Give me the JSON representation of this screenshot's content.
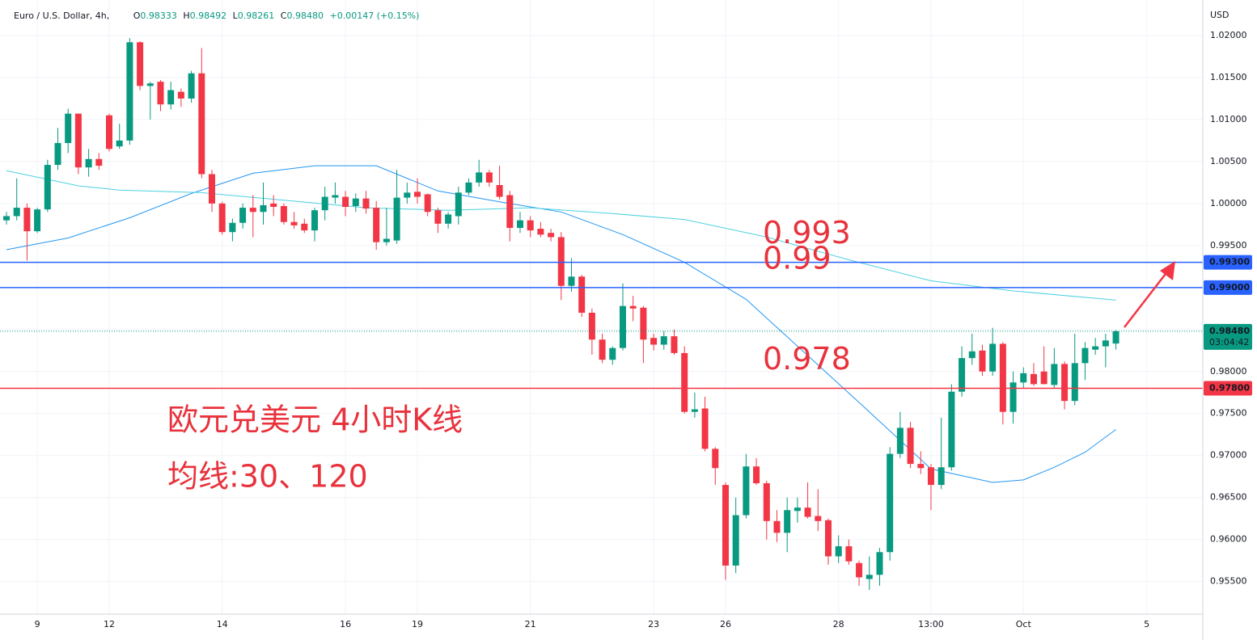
{
  "chart_data": {
    "type": "candlestick",
    "header": {
      "symbol": "Euro / U.S. Dollar, 4h,",
      "ohlc": [
        {
          "key": "O",
          "value": "0.98333"
        },
        {
          "key": "H",
          "value": "0.98492"
        },
        {
          "key": "L",
          "value": "0.98261"
        },
        {
          "key": "C",
          "value": "0.98480"
        }
      ],
      "change": "+0.00147 (+0.15%)"
    },
    "currency": "USD",
    "annotations": [
      "欧元兑美元 4小时K线",
      "均线:30、120"
    ],
    "up_color": "#089981",
    "down_color": "#f23645",
    "open": [
      0.998,
      0.9985,
      0.9995,
      0.9967,
      0.9993,
      1.0046,
      1.0072,
      1.0107,
      1.0043,
      1.0053,
      1.0105,
      1.0068,
      1.0075,
      1.0192,
      1.014,
      1.0145,
      1.0118,
      1.0133,
      1.0125,
      1.0155,
      1.0035,
      1.0,
      0.9966,
      0.9977,
      0.9995,
      0.999,
      1.0,
      0.9997,
      0.9978,
      0.9976,
      0.9968,
      0.9992,
      1.0007,
      1.0008,
      0.9997,
      1.0006,
      0.9995,
      0.9954,
      0.9956,
      1.0007,
      1.0014,
      1.0011,
      0.9992,
      0.9976,
      0.9985,
      1.0013,
      1.0025,
      1.0037,
      1.0022,
      1.001,
      0.9971,
      0.998,
      0.997,
      0.9965,
      0.996,
      0.9902,
      0.9913,
      0.987,
      0.9838,
      0.9814,
      0.9828,
      0.9878,
      0.9876,
      0.984,
      0.9832,
      0.9842,
      0.9822,
      0.9752,
      0.9756,
      0.9708,
      0.9665,
      0.9569,
      0.9629,
      0.9687,
      0.9667,
      0.9622,
      0.9608,
      0.9634,
      0.9638,
      0.9628,
      0.9623,
      0.958,
      0.9592,
      0.9572,
      0.9553,
      0.9558,
      0.9585,
      0.9702,
      0.9733,
      0.969,
      0.9686,
      0.9665,
      0.9686,
      0.9776,
      0.9816,
      0.9825,
      0.98,
      0.9833,
      0.9752,
      0.9787,
      0.9797,
      0.98,
      0.9784,
      0.9809,
      0.9765,
      0.981,
      0.9826,
      0.983,
      0.98333
    ],
    "high": [
      0.999,
      1.003,
      1.0,
      0.9995,
      1.0052,
      1.009,
      1.0113,
      1.0107,
      1.0065,
      1.006,
      1.0107,
      1.0095,
      1.0197,
      1.0193,
      1.0145,
      1.0147,
      1.0145,
      1.0137,
      1.0158,
      1.0185,
      1.004,
      1.0002,
      0.9982,
      1.0,
      1.001,
      1.0025,
      1.001,
      1.0,
      0.999,
      0.9982,
      0.9995,
      1.002,
      1.0025,
      1.0015,
      1.0012,
      1.0015,
      1.0003,
      0.9995,
      1.004,
      1.0025,
      1.003,
      1.0012,
      0.9995,
      0.999,
      1.002,
      1.003,
      1.0052,
      1.004,
      1.0045,
      1.0015,
      0.999,
      0.9985,
      0.9978,
      0.997,
      0.9966,
      0.9935,
      0.9915,
      0.9875,
      0.9845,
      0.983,
      0.9905,
      0.989,
      0.9878,
      0.9845,
      0.9848,
      0.985,
      0.983,
      0.9775,
      0.977,
      0.971,
      0.9668,
      0.965,
      0.9702,
      0.9697,
      0.967,
      0.9635,
      0.965,
      0.965,
      0.9668,
      0.966,
      0.9625,
      0.9605,
      0.96,
      0.9575,
      0.958,
      0.959,
      0.971,
      0.9752,
      0.974,
      0.9705,
      0.969,
      0.9745,
      0.9785,
      0.983,
      0.9845,
      0.9832,
      0.9852,
      0.9835,
      0.98,
      0.9805,
      0.981,
      0.983,
      0.9828,
      0.9812,
      0.9845,
      0.9835,
      0.984,
      0.9845,
      0.98492
    ],
    "low": [
      0.9975,
      0.998,
      0.9932,
      0.9965,
      0.999,
      1.004,
      1.006,
      1.0035,
      1.0032,
      1.004,
      1.0062,
      1.0065,
      1.007,
      1.0135,
      1.01,
      1.011,
      1.0112,
      1.0115,
      1.012,
      1.003,
      0.999,
      0.9963,
      0.9955,
      0.997,
      0.996,
      0.9975,
      0.9985,
      0.9975,
      0.997,
      0.9965,
      0.9955,
      0.998,
      1.0,
      0.9985,
      0.999,
      0.9988,
      0.9945,
      0.995,
      0.9952,
      1.0,
      1.0,
      0.9985,
      0.9965,
      0.997,
      0.9975,
      1.001,
      1.002,
      1.002,
      1.0005,
      0.9955,
      0.9965,
      0.996,
      0.996,
      0.9955,
      0.9885,
      0.9895,
      0.9865,
      0.982,
      0.981,
      0.9808,
      0.9825,
      0.986,
      0.981,
      0.9825,
      0.9826,
      0.982,
      0.975,
      0.9745,
      0.9705,
      0.9665,
      0.9552,
      0.956,
      0.9625,
      0.9665,
      0.96,
      0.9597,
      0.9585,
      0.962,
      0.9625,
      0.961,
      0.957,
      0.9572,
      0.957,
      0.9545,
      0.954,
      0.9545,
      0.9575,
      0.9697,
      0.9685,
      0.9678,
      0.9635,
      0.966,
      0.9682,
      0.977,
      0.9808,
      0.9795,
      0.9795,
      0.9737,
      0.9738,
      0.978,
      0.9783,
      0.9785,
      0.978,
      0.9755,
      0.976,
      0.979,
      0.982,
      0.9805,
      0.98261
    ],
    "close": [
      0.9985,
      0.9995,
      0.9967,
      0.9993,
      1.0046,
      1.0072,
      1.0107,
      1.0043,
      1.0053,
      1.0045,
      1.0065,
      1.0075,
      1.0192,
      1.014,
      1.0143,
      1.0118,
      1.0135,
      1.0125,
      1.0155,
      1.0035,
      1.0,
      0.9966,
      0.9977,
      0.9995,
      0.999,
      0.9998,
      0.9996,
      0.9978,
      0.9974,
      0.9968,
      0.9992,
      1.0008,
      1.001,
      0.9996,
      1.0006,
      0.9994,
      0.9954,
      0.9958,
      1.0007,
      1.0013,
      1.0008,
      0.999,
      0.9976,
      0.9987,
      1.0013,
      1.0025,
      1.0037,
      1.0025,
      1.0008,
      0.9971,
      0.998,
      0.9968,
      0.9963,
      0.996,
      0.9902,
      0.9913,
      0.987,
      0.9838,
      0.9814,
      0.9828,
      0.9878,
      0.9875,
      0.9838,
      0.9832,
      0.9842,
      0.9822,
      0.9752,
      0.9755,
      0.9708,
      0.9685,
      0.9569,
      0.9629,
      0.9687,
      0.9667,
      0.9622,
      0.9608,
      0.9635,
      0.9638,
      0.9627,
      0.9622,
      0.958,
      0.9592,
      0.9574,
      0.9555,
      0.9558,
      0.9585,
      0.9702,
      0.9733,
      0.969,
      0.9685,
      0.9665,
      0.9686,
      0.9776,
      0.9816,
      0.9824,
      0.98,
      0.9833,
      0.9752,
      0.9787,
      0.9798,
      0.9785,
      0.9785,
      0.9809,
      0.9765,
      0.981,
      0.9828,
      0.983,
      0.9837,
      0.9848
    ],
    "lines": [
      {
        "color": "#2196f3",
        "x": [
          0,
          6,
          12,
          18,
          24,
          30,
          36,
          42,
          48,
          54,
          60,
          66,
          72,
          78,
          84,
          90,
          96,
          99,
          102,
          105,
          108
        ],
        "values": [
          0.9945,
          0.9959,
          0.9983,
          1.0012,
          1.0036,
          1.0045,
          1.0045,
          1.0015,
          1.0002,
          0.999,
          0.9963,
          0.993,
          0.9886,
          0.9819,
          0.9752,
          0.9684,
          0.9668,
          0.9671,
          0.9686,
          0.9704,
          0.9731
        ]
      },
      {
        "color": "#4dd0e1",
        "x": [
          0,
          7,
          11,
          19,
          27,
          35,
          43,
          51,
          59,
          66,
          74,
          82,
          90,
          98,
          108
        ],
        "values": [
          1.0039,
          1.0021,
          1.0016,
          1.0013,
          1.0004,
          0.9995,
          0.9992,
          0.9995,
          0.9988,
          0.9981,
          0.996,
          0.9933,
          0.9908,
          0.9896,
          0.9885
        ]
      }
    ],
    "levels": [
      {
        "value": 0.993,
        "label": "0.99300",
        "color": "#2962ff"
      },
      {
        "value": 0.99,
        "label": "0.99000",
        "color": "#2962ff"
      },
      {
        "value": 0.978,
        "label": "0.97800",
        "color": "#f23645"
      }
    ],
    "last_price": {
      "value": 0.9848,
      "label": "0.98480",
      "countdown": "03:04:42",
      "color": "#089981"
    },
    "ylim": [
      0.95131,
      1.02346
    ],
    "yticks": [
      {
        "value": 1.02,
        "label": "1.02000"
      },
      {
        "value": 1.015,
        "label": "1.01500"
      },
      {
        "value": 1.01,
        "label": "1.01000"
      },
      {
        "value": 1.005,
        "label": "1.00500"
      },
      {
        "value": 1.0,
        "label": "1.00000"
      },
      {
        "value": 0.995,
        "label": "0.99500"
      },
      {
        "value": 0.99,
        "label": "0.99000"
      },
      {
        "value": 0.985,
        "label": "0.98500"
      },
      {
        "value": 0.98,
        "label": "0.98000"
      },
      {
        "value": 0.975,
        "label": "0.97500"
      },
      {
        "value": 0.97,
        "label": "0.97000"
      },
      {
        "value": 0.965,
        "label": "0.96500"
      },
      {
        "value": 0.96,
        "label": "0.96000"
      },
      {
        "value": 0.955,
        "label": "0.95500"
      }
    ],
    "xlim": [
      -0.63,
      116.46
    ],
    "xticks": [
      {
        "value": 3,
        "label": "9"
      },
      {
        "value": 10,
        "label": "12"
      },
      {
        "value": 21,
        "label": "14"
      },
      {
        "value": 33,
        "label": "16"
      },
      {
        "value": 40,
        "label": "19"
      },
      {
        "value": 51,
        "label": "21"
      },
      {
        "value": 63,
        "label": "23"
      },
      {
        "value": 70,
        "label": "26"
      },
      {
        "value": 81,
        "label": "28"
      },
      {
        "value": 90,
        "label": "13:00"
      },
      {
        "value": 99,
        "label": "Oct"
      },
      {
        "value": 111,
        "label": "5"
      }
    ],
    "grid": true
  }
}
